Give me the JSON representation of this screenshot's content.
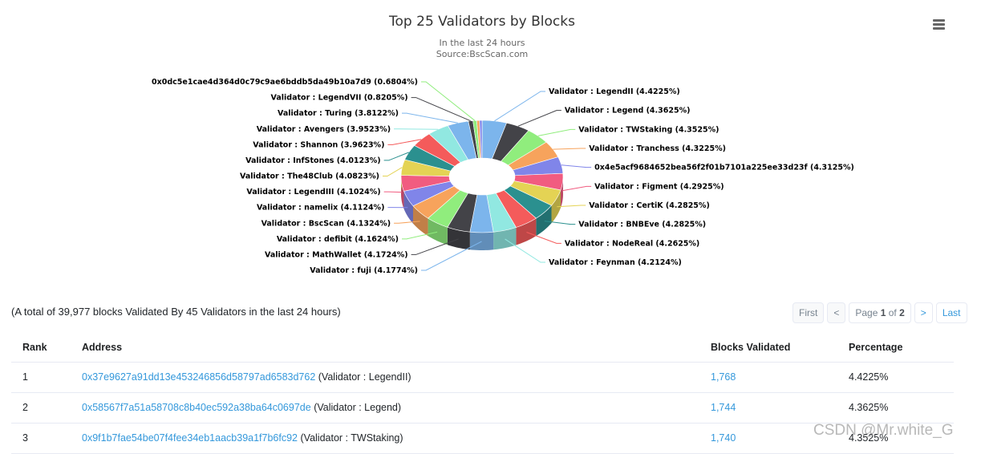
{
  "chart_data": {
    "type": "pie",
    "title": "Top 25 Validators by Blocks",
    "subtitle": [
      "In the last 24 hours",
      "Source:BscScan.com"
    ],
    "slices": [
      {
        "name": "Validator : LegendII",
        "value": 4.4225,
        "label": "Validator : LegendII (4.4225%)",
        "color": "#7cb5ec"
      },
      {
        "name": "Validator : Legend",
        "value": 4.3625,
        "label": "Validator : Legend (4.3625%)",
        "color": "#434348"
      },
      {
        "name": "Validator : TWStaking",
        "value": 4.3525,
        "label": "Validator : TWStaking (4.3525%)",
        "color": "#90ed7d"
      },
      {
        "name": "Validator : Tranchess",
        "value": 4.3225,
        "label": "Validator : Tranchess (4.3225%)",
        "color": "#f7a35c"
      },
      {
        "name": "0x4e5acf9684652bea56f2f01b7101a225ee33d23f",
        "value": 4.3125,
        "label": "0x4e5acf9684652bea56f2f01b7101a225ee33d23f (4.3125%)",
        "color": "#8085e9"
      },
      {
        "name": "Validator : Figment",
        "value": 4.2925,
        "label": "Validator : Figment (4.2925%)",
        "color": "#f15c80"
      },
      {
        "name": "Validator : CertiK",
        "value": 4.2825,
        "label": "Validator : CertiK (4.2825%)",
        "color": "#e4d354"
      },
      {
        "name": "Validator : BNBEve",
        "value": 4.2825,
        "label": "Validator : BNBEve (4.2825%)",
        "color": "#2b908f"
      },
      {
        "name": "Validator : NodeReal",
        "value": 4.2625,
        "label": "Validator : NodeReal (4.2625%)",
        "color": "#f45b5b"
      },
      {
        "name": "Validator : Feynman",
        "value": 4.2124,
        "label": "Validator : Feynman (4.2124%)",
        "color": "#91e8e1"
      },
      {
        "name": "Validator : fuji",
        "value": 4.1774,
        "label": "Validator : fuji (4.1774%)",
        "color": "#7cb5ec"
      },
      {
        "name": "Validator : MathWallet",
        "value": 4.1724,
        "label": "Validator : MathWallet (4.1724%)",
        "color": "#434348"
      },
      {
        "name": "Validator : defibit",
        "value": 4.1624,
        "label": "Validator : defibit (4.1624%)",
        "color": "#90ed7d"
      },
      {
        "name": "Validator : BscScan",
        "value": 4.1324,
        "label": "Validator : BscScan (4.1324%)",
        "color": "#f7a35c"
      },
      {
        "name": "Validator : namelix",
        "value": 4.1124,
        "label": "Validator : namelix (4.1124%)",
        "color": "#8085e9"
      },
      {
        "name": "Validator : LegendIII",
        "value": 4.1024,
        "label": "Validator : LegendIII (4.1024%)",
        "color": "#f15c80"
      },
      {
        "name": "Validator : The48Club",
        "value": 4.0823,
        "label": "Validator : The48Club (4.0823%)",
        "color": "#e4d354"
      },
      {
        "name": "Validator : InfStones",
        "value": 4.0123,
        "label": "Validator : InfStones (4.0123%)",
        "color": "#2b908f"
      },
      {
        "name": "Validator : Shannon",
        "value": 3.9623,
        "label": "Validator : Shannon (3.9623%)",
        "color": "#f45b5b"
      },
      {
        "name": "Validator : Avengers",
        "value": 3.9523,
        "label": "Validator : Avengers (3.9523%)",
        "color": "#91e8e1"
      },
      {
        "name": "Validator : Turing",
        "value": 3.8122,
        "label": "Validator : Turing (3.8122%)",
        "color": "#7cb5ec"
      },
      {
        "name": "Validator : LegendVII",
        "value": 0.8205,
        "label": "Validator : LegendVII (0.8205%)",
        "color": "#434348"
      },
      {
        "name": "0x0dc5e1cae4d364d0c79c9ae6bddb5da49b10a7d9",
        "value": 0.6804,
        "label": "0x0dc5e1cae4d364d0c79c9ae6bddb5da49b10a7d9 (0.6804%)",
        "color": "#90ed7d"
      },
      {
        "name": "",
        "value": 0.5,
        "label": "",
        "color": "#f7a35c"
      },
      {
        "name": "",
        "value": 0.45,
        "label": "",
        "color": "#8085e9"
      }
    ]
  },
  "menu": {
    "icon": "hamburger-menu-icon"
  },
  "summary_text": "(A total of 39,977 blocks Validated By 45 Validators in the last 24 hours)",
  "pagination": {
    "first": "First",
    "prev": "<",
    "page_prefix": "Page",
    "page_current": "1",
    "page_of": "of",
    "page_total": "2",
    "next": ">",
    "last": "Last"
  },
  "table": {
    "headers": {
      "rank": "Rank",
      "address": "Address",
      "blocks": "Blocks Validated",
      "percentage": "Percentage"
    },
    "rows": [
      {
        "rank": "1",
        "address": "0x37e9627a91dd13e453246856d58797ad6583d762",
        "validator": "(Validator : LegendII)",
        "blocks": "1,768",
        "percentage": "4.4225%"
      },
      {
        "rank": "2",
        "address": "0x58567f7a51a58708c8b40ec592a38ba64c0697de",
        "validator": "(Validator : Legend)",
        "blocks": "1,744",
        "percentage": "4.3625%"
      },
      {
        "rank": "3",
        "address": "0x9f1b7fae54be07f4fee34eb1aacb39a1f7b6fc92",
        "validator": "(Validator : TWStaking)",
        "blocks": "1,740",
        "percentage": "4.3525%"
      }
    ]
  },
  "watermark": "CSDN @Mr.white_G"
}
